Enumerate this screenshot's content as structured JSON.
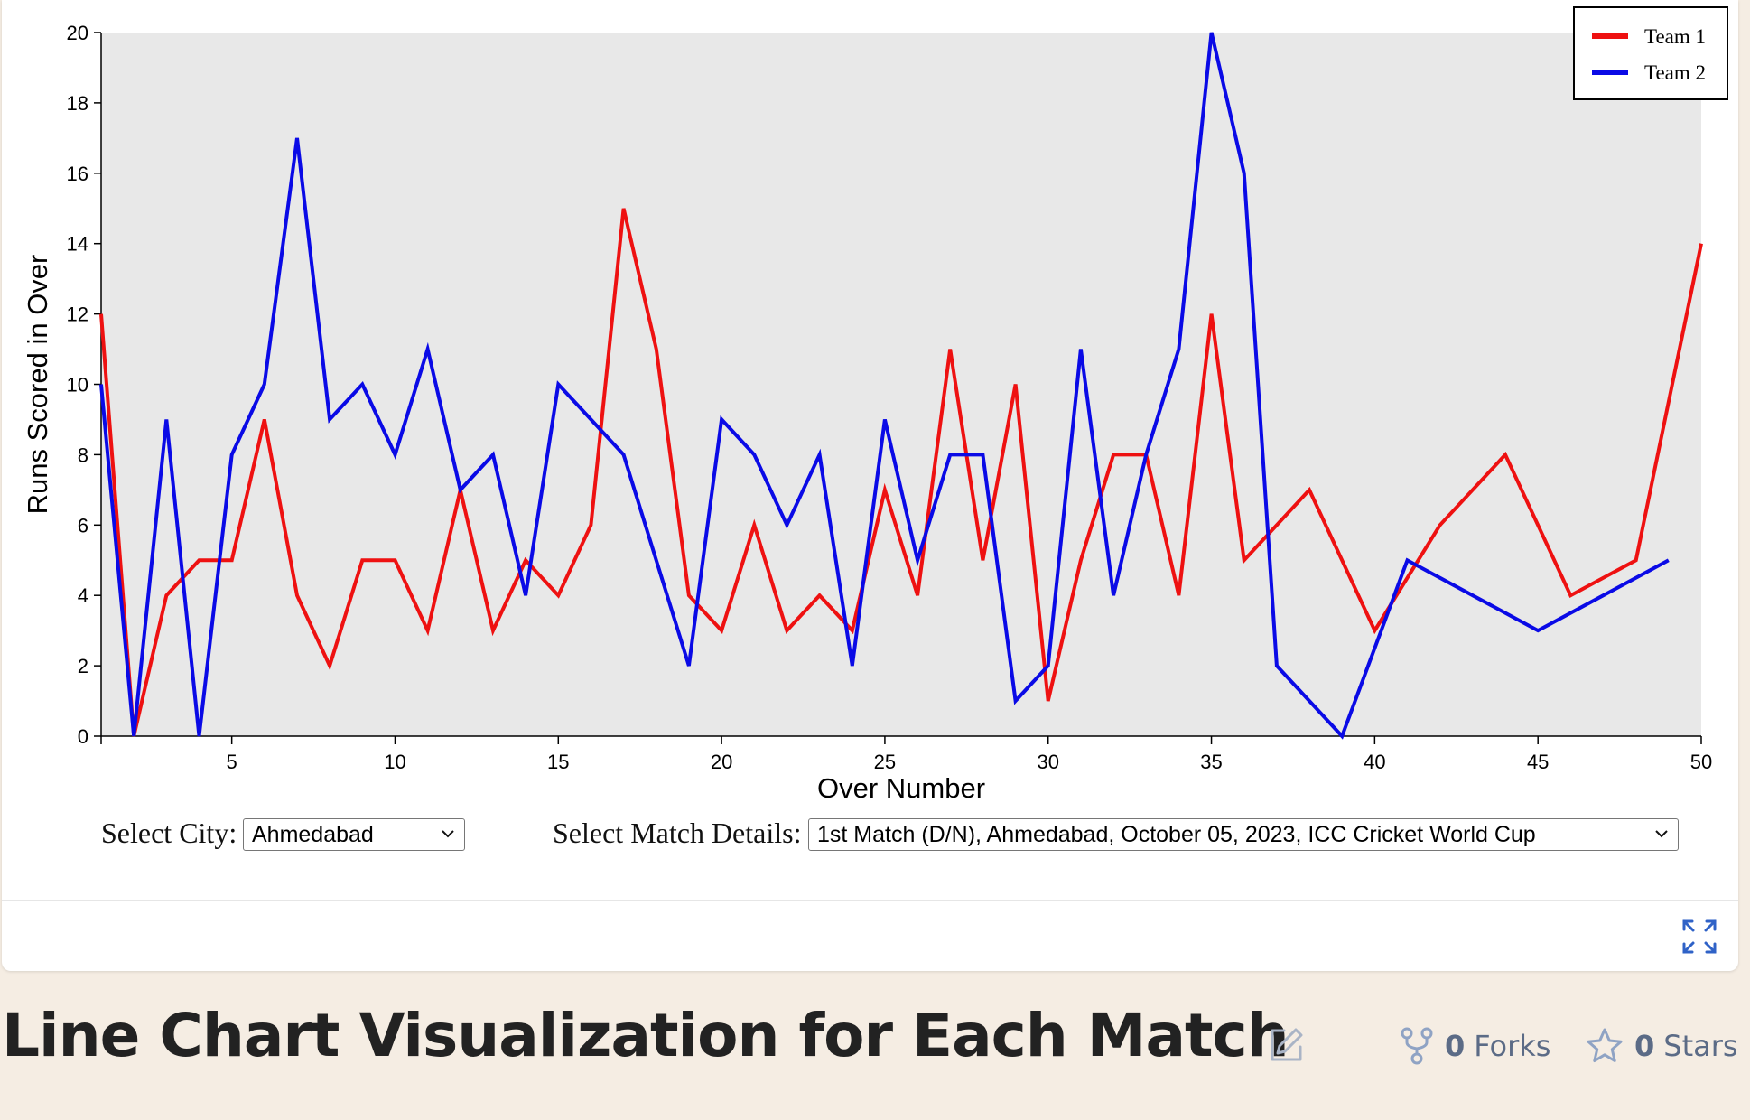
{
  "chart_data": {
    "type": "line",
    "xlabel": "Over Number",
    "ylabel": "Runs Scored in Over",
    "xlim": [
      1,
      50
    ],
    "ylim": [
      0,
      20
    ],
    "x_ticks": [
      5,
      10,
      15,
      20,
      25,
      30,
      35,
      40,
      45,
      50
    ],
    "y_ticks": [
      0,
      2,
      4,
      6,
      8,
      10,
      12,
      14,
      16,
      18,
      20
    ],
    "legend_position": "top-right",
    "plot_background": "#e8e8e8",
    "series": [
      {
        "name": "Team 1",
        "color": "#ee1111",
        "x": [
          1,
          2,
          3,
          4,
          5,
          6,
          7,
          8,
          9,
          10,
          11,
          12,
          13,
          14,
          15,
          16,
          17,
          18,
          19,
          20,
          21,
          22,
          23,
          24,
          25,
          26,
          27,
          28,
          29,
          30,
          31,
          32,
          33,
          34,
          35,
          36,
          38,
          40,
          42,
          44,
          46,
          48,
          50
        ],
        "y": [
          12,
          0,
          4,
          5,
          5,
          9,
          4,
          2,
          5,
          5,
          3,
          7,
          3,
          5,
          4,
          6,
          15,
          11,
          4,
          3,
          6,
          3,
          4,
          3,
          7,
          4,
          11,
          5,
          10,
          1,
          5,
          8,
          8,
          4,
          12,
          5,
          7,
          3,
          6,
          8,
          4,
          5,
          14
        ]
      },
      {
        "name": "Team 2",
        "color": "#0a0ae6",
        "x": [
          1,
          2,
          3,
          4,
          5,
          6,
          7,
          8,
          9,
          10,
          11,
          12,
          13,
          14,
          15,
          17,
          19,
          20,
          21,
          22,
          23,
          24,
          25,
          26,
          27,
          28,
          29,
          30,
          31,
          32,
          33,
          34,
          35,
          36,
          37,
          39,
          41,
          45,
          49
        ],
        "y": [
          10,
          0,
          9,
          0,
          8,
          10,
          17,
          9,
          10,
          8,
          11,
          7,
          8,
          4,
          10,
          8,
          2,
          9,
          8,
          6,
          8,
          2,
          9,
          5,
          8,
          8,
          1,
          2,
          11,
          4,
          8,
          11,
          20,
          16,
          2,
          0,
          5,
          3,
          5
        ]
      }
    ]
  },
  "controls": {
    "city_label": "Select City:",
    "city_value": "Ahmedabad",
    "match_label": "Select Match Details:",
    "match_value": "1st Match (D/N), Ahmedabad, October 05, 2023, ICC Cricket World Cup"
  },
  "page": {
    "title": "Line Chart Visualization for Each Match",
    "forks_count": "0",
    "forks_label": "Forks",
    "stars_count": "0",
    "stars_label": "Stars"
  },
  "icons": [
    "expand-icon",
    "edit-icon",
    "fork-icon",
    "star-icon",
    "chevron-down-icon"
  ]
}
